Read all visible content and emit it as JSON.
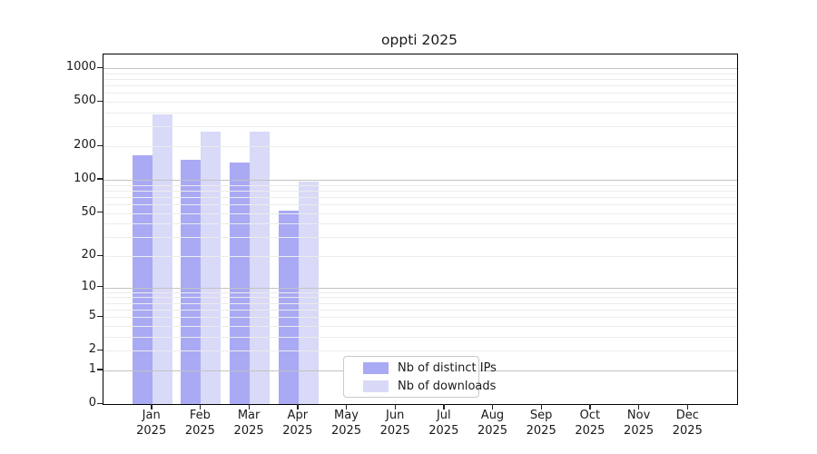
{
  "chart_data": {
    "type": "bar",
    "title": "oppti 2025",
    "categories": [
      "Jan",
      "Feb",
      "Mar",
      "Apr",
      "May",
      "Jun",
      "Jul",
      "Aug",
      "Sep",
      "Oct",
      "Nov",
      "Dec"
    ],
    "year_label": "2025",
    "series": [
      {
        "name": "Nb of distinct IPs",
        "color": "#a9a9f4",
        "values": [
          166,
          151,
          143,
          52,
          0,
          0,
          0,
          0,
          0,
          0,
          0,
          0
        ]
      },
      {
        "name": "Nb of downloads",
        "color": "#d9d9f8",
        "values": [
          386,
          268,
          268,
          96,
          0,
          0,
          0,
          0,
          0,
          0,
          0,
          0
        ]
      }
    ],
    "yscale": "log1p",
    "yticks": [
      1000,
      500,
      200,
      100,
      50,
      20,
      10,
      5,
      2,
      1,
      0
    ],
    "minor_gridlines": [
      2,
      3,
      4,
      5,
      6,
      7,
      8,
      9,
      20,
      30,
      40,
      50,
      60,
      70,
      80,
      90,
      200,
      300,
      400,
      500,
      600,
      700,
      800,
      900
    ],
    "major_gridlines": [
      1,
      10,
      100,
      1000
    ],
    "ylim": [
      0,
      1277
    ],
    "grid": true,
    "legend_position": "bottom-center-inside"
  }
}
